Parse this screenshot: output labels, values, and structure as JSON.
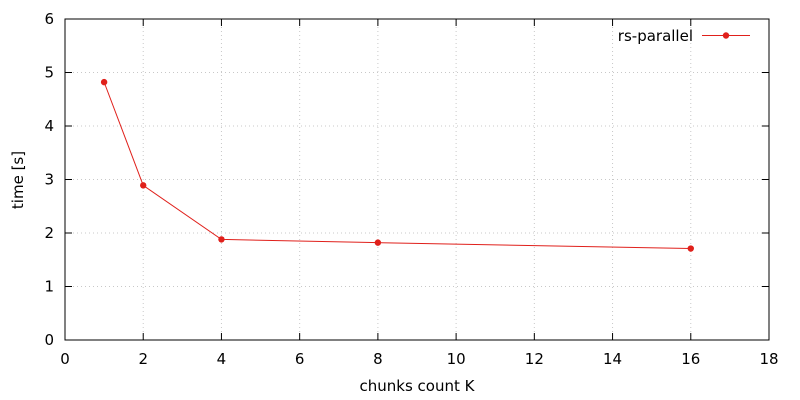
{
  "chart_data": {
    "type": "line",
    "title": "",
    "xlabel": "chunks count K",
    "ylabel": "time [s]",
    "xlim": [
      0,
      18
    ],
    "ylim": [
      0,
      6
    ],
    "xticks": [
      0,
      2,
      4,
      6,
      8,
      10,
      12,
      14,
      16,
      18
    ],
    "yticks": [
      0,
      1,
      2,
      3,
      4,
      5,
      6
    ],
    "grid": true,
    "legend_position": "top-right",
    "series": [
      {
        "name": "rs-parallel",
        "color": "#e0201b",
        "x": [
          1,
          2,
          4,
          8,
          16
        ],
        "y": [
          4.82,
          2.89,
          1.88,
          1.82,
          1.71
        ]
      }
    ]
  }
}
